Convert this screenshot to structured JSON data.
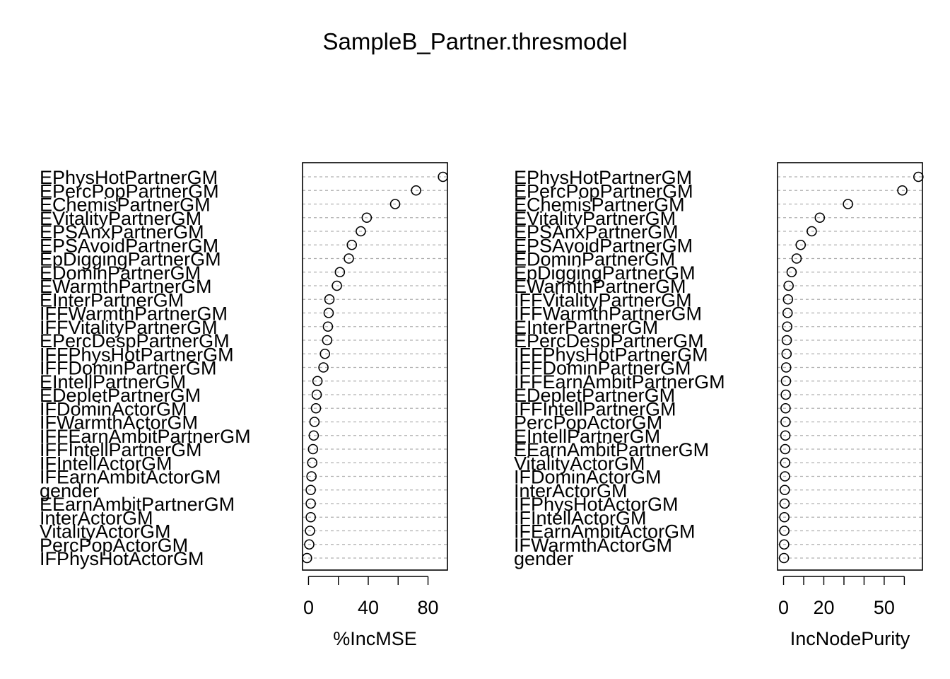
{
  "title": "SampleB_Partner.thresmodel",
  "chart_data": [
    {
      "type": "scatter",
      "xlabel": "%IncMSE",
      "xticks": [
        0,
        40,
        80
      ],
      "xlim": [
        -4,
        93
      ],
      "grid": true,
      "categories": [
        "EPhysHotPartnerGM",
        "EPercPopPartnerGM",
        "EChemisPartnerGM",
        "EVitalityPartnerGM",
        "EPSAnxPartnerGM",
        "EPSAvoidPartnerGM",
        "EpDiggingPartnerGM",
        "EDominPartnerGM",
        "EWarmthPartnerGM",
        "EInterPartnerGM",
        "IFFWarmthPartnerGM",
        "IFFVitalityPartnerGM",
        "EPercDespPartnerGM",
        "IFFPhysHotPartnerGM",
        "IFFDominPartnerGM",
        "EIntellPartnerGM",
        "EDepletPartnerGM",
        "IFDominActorGM",
        "IFWarmthActorGM",
        "IFFEarnAmbitPartnerGM",
        "IFFIntellPartnerGM",
        "IFIntellActorGM",
        "IFEarnAmbitActorGM",
        "gender",
        "EEarnAmbitPartnerGM",
        "InterActorGM",
        "VitalityActorGM",
        "PercPopActorGM",
        "IFPhysHotActorGM"
      ],
      "values": [
        90,
        72,
        58,
        39,
        35,
        29,
        27,
        21,
        19,
        14,
        13.5,
        13,
        12.5,
        11,
        10,
        6,
        5.5,
        5,
        4,
        3.5,
        3,
        2.5,
        2,
        1.5,
        1.5,
        1.5,
        1,
        0.5,
        -1
      ]
    },
    {
      "type": "scatter",
      "xlabel": "IncNodePurity",
      "xticks": [
        0,
        20,
        50
      ],
      "xticks_minor": [
        10,
        30,
        40,
        60
      ],
      "xlim": [
        -3,
        69
      ],
      "grid": true,
      "categories": [
        "EPhysHotPartnerGM",
        "EPercPopPartnerGM",
        "EChemisPartnerGM",
        "EVitalityPartnerGM",
        "EPSAnxPartnerGM",
        "EPSAvoidPartnerGM",
        "EDominPartnerGM",
        "EpDiggingPartnerGM",
        "EWarmthPartnerGM",
        "IFFVitalityPartnerGM",
        "IFFWarmthPartnerGM",
        "EInterPartnerGM",
        "EPercDespPartnerGM",
        "IFFPhysHotPartnerGM",
        "IFFDominPartnerGM",
        "IFFEarnAmbitPartnerGM",
        "EDepletPartnerGM",
        "IFFIntellPartnerGM",
        "PercPopActorGM",
        "EIntellPartnerGM",
        "EEarnAmbitPartnerGM",
        "VitalityActorGM",
        "IFDominActorGM",
        "InterActorGM",
        "IFPhysHotActorGM",
        "IFIntellActorGM",
        "IFEarnAmbitActorGM",
        "IFWarmthActorGM",
        "gender"
      ],
      "values": [
        67,
        59,
        32,
        18,
        14,
        8.5,
        6.5,
        4,
        2.5,
        2.2,
        2,
        1.8,
        1.6,
        1.5,
        1.3,
        1.2,
        1.1,
        1,
        1,
        0.9,
        0.8,
        0.8,
        0.7,
        0.6,
        0.5,
        0.4,
        0.4,
        0.3,
        0.2
      ]
    }
  ]
}
